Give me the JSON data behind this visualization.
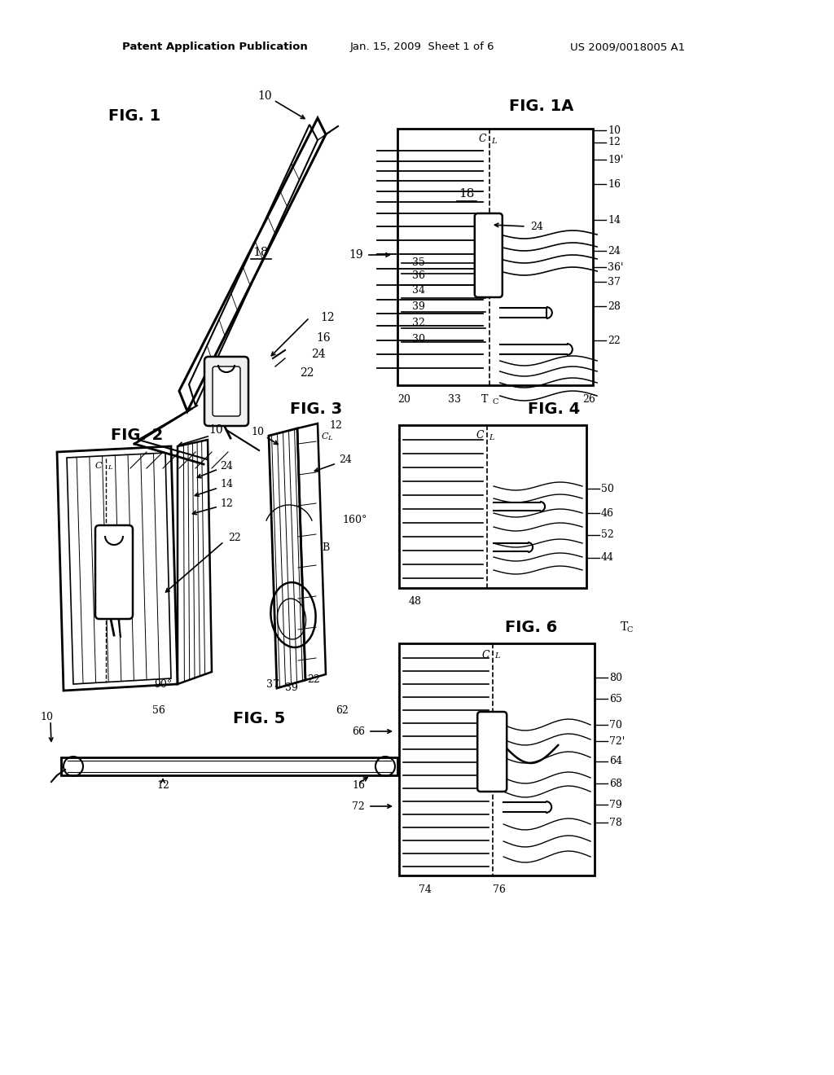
{
  "bg_color": "#ffffff",
  "header_left": "Patent Application Publication",
  "header_mid": "Jan. 15, 2009  Sheet 1 of 6",
  "header_right": "US 2009/0018005 A1",
  "fig1_label": "FIG. 1",
  "fig1a_label": "FIG. 1A",
  "fig2_label": "FIG. 2",
  "fig3_label": "FIG. 3",
  "fig4_label": "FIG. 4",
  "fig5_label": "FIG. 5",
  "fig6_label": "FIG. 6"
}
